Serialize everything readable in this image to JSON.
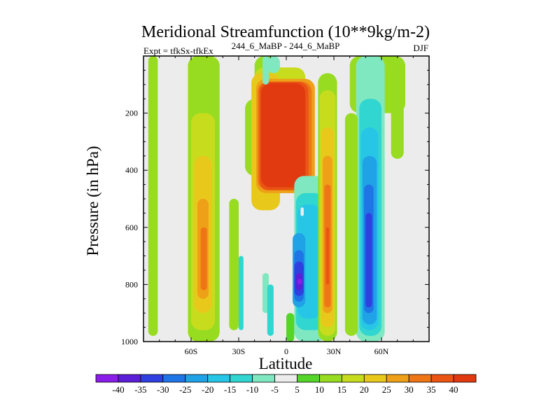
{
  "chart_data": {
    "type": "heatmap",
    "title": "Meridional Streamfunction (10**9kg/m-2)",
    "subtitle_left": "Expt = tfkSx-tfkEx",
    "subtitle_center": "244_6_MaBP - 244_6_MaBP",
    "subtitle_right": "DJF",
    "xlabel": "Latitude",
    "ylabel": "Pressure (in hPa)",
    "xlim": [
      -90,
      90
    ],
    "ylim": [
      1000,
      0
    ],
    "x_ticks": [
      {
        "value": -60,
        "label": "60S"
      },
      {
        "value": -30,
        "label": "30S"
      },
      {
        "value": 0,
        "label": "0"
      },
      {
        "value": 30,
        "label": "30N"
      },
      {
        "value": 60,
        "label": "60N"
      }
    ],
    "y_ticks": [
      {
        "value": 200,
        "label": "200"
      },
      {
        "value": 400,
        "label": "400"
      },
      {
        "value": 600,
        "label": "600"
      },
      {
        "value": 800,
        "label": "800"
      },
      {
        "value": 1000,
        "label": "1000"
      }
    ],
    "colorbar": {
      "labels": [
        "-40",
        "-35",
        "-30",
        "-25",
        "-20",
        "-15",
        "-10",
        "-5",
        "5",
        "10",
        "15",
        "20",
        "25",
        "30",
        "35",
        "40"
      ],
      "colors": [
        "#8a1ee8",
        "#5a1fd6",
        "#2f3fe0",
        "#1f74e6",
        "#20a2e6",
        "#27c6e6",
        "#31d6d0",
        "#7fe8c0",
        "#ececec",
        "#55d42a",
        "#98dc22",
        "#c8dc1e",
        "#e8c81a",
        "#eea018",
        "#ee7616",
        "#ea5514",
        "#e23a10"
      ]
    },
    "background_color": "#ececec",
    "cells": [
      {
        "level": 10,
        "lat": [
          -62,
          -42
        ],
        "p": [
          0,
          1000
        ]
      },
      {
        "level": 11,
        "lat": [
          -60,
          -45
        ],
        "p": [
          200,
          960
        ]
      },
      {
        "level": 12,
        "lat": [
          -58,
          -47
        ],
        "p": [
          350,
          900
        ]
      },
      {
        "level": 13,
        "lat": [
          -56,
          -49
        ],
        "p": [
          500,
          850
        ]
      },
      {
        "level": 14,
        "lat": [
          -54,
          -50
        ],
        "p": [
          600,
          820
        ]
      },
      {
        "level": 10,
        "lat": [
          -87,
          -81
        ],
        "p": [
          0,
          980
        ]
      },
      {
        "level": 10,
        "lat": [
          -36,
          -30
        ],
        "p": [
          500,
          960
        ]
      },
      {
        "level": 6,
        "lat": [
          -30,
          -27
        ],
        "p": [
          700,
          960
        ]
      },
      {
        "level": 7,
        "lat": [
          -15,
          -11
        ],
        "p": [
          760,
          900
        ]
      },
      {
        "level": 6,
        "lat": [
          -12,
          -8
        ],
        "p": [
          800,
          980
        ]
      },
      {
        "level": 10,
        "lat": [
          -20,
          -5
        ],
        "p": [
          0,
          120
        ]
      },
      {
        "level": 11,
        "lat": [
          -20,
          12
        ],
        "p": [
          40,
          250
        ]
      },
      {
        "level": 10,
        "lat": [
          -26,
          -8
        ],
        "p": [
          150,
          420
        ]
      },
      {
        "level": 12,
        "lat": [
          -22,
          -4
        ],
        "p": [
          60,
          540
        ]
      },
      {
        "level": 13,
        "lat": [
          -19,
          18
        ],
        "p": [
          80,
          480
        ]
      },
      {
        "level": 14,
        "lat": [
          -18,
          16
        ],
        "p": [
          90,
          470
        ]
      },
      {
        "level": 15,
        "lat": [
          -17,
          14
        ],
        "p": [
          90,
          470
        ]
      },
      {
        "level": 16,
        "lat": [
          -16,
          12
        ],
        "p": [
          95,
          460
        ]
      },
      {
        "level": 7,
        "lat": [
          -12,
          -4
        ],
        "p": [
          0,
          60
        ]
      },
      {
        "level": 7,
        "lat": [
          5,
          25
        ],
        "p": [
          420,
          1000
        ]
      },
      {
        "level": 6,
        "lat": [
          6,
          24
        ],
        "p": [
          480,
          960
        ]
      },
      {
        "level": 5,
        "lat": [
          7,
          22
        ],
        "p": [
          520,
          920
        ]
      },
      {
        "level": 4,
        "lat": [
          4,
          12
        ],
        "p": [
          620,
          880
        ]
      },
      {
        "level": 3,
        "lat": [
          5,
          11
        ],
        "p": [
          680,
          860
        ]
      },
      {
        "level": 2,
        "lat": [
          5,
          11
        ],
        "p": [
          720,
          840
        ]
      },
      {
        "level": 1,
        "lat": [
          6,
          10
        ],
        "p": [
          760,
          820
        ]
      },
      {
        "level": 0,
        "lat": [
          7,
          10
        ],
        "p": [
          780,
          800
        ]
      },
      {
        "level": 8,
        "lat": [
          9,
          11
        ],
        "p": [
          530,
          560
        ]
      },
      {
        "level": 9,
        "lat": [
          0,
          5
        ],
        "p": [
          900,
          1000
        ]
      },
      {
        "level": 10,
        "lat": [
          20,
          32
        ],
        "p": [
          60,
          1000
        ]
      },
      {
        "level": 11,
        "lat": [
          21,
          31
        ],
        "p": [
          120,
          980
        ]
      },
      {
        "level": 12,
        "lat": [
          22,
          30
        ],
        "p": [
          250,
          950
        ]
      },
      {
        "level": 13,
        "lat": [
          23,
          29
        ],
        "p": [
          350,
          900
        ]
      },
      {
        "level": 14,
        "lat": [
          24,
          28
        ],
        "p": [
          450,
          880
        ]
      },
      {
        "level": 15,
        "lat": [
          25,
          27
        ],
        "p": [
          600,
          800
        ]
      },
      {
        "level": 10,
        "lat": [
          40,
          75
        ],
        "p": [
          0,
          200
        ]
      },
      {
        "level": 7,
        "lat": [
          44,
          62
        ],
        "p": [
          0,
          1000
        ]
      },
      {
        "level": 6,
        "lat": [
          46,
          60
        ],
        "p": [
          150,
          980
        ]
      },
      {
        "level": 5,
        "lat": [
          47,
          58
        ],
        "p": [
          250,
          960
        ]
      },
      {
        "level": 4,
        "lat": [
          48,
          57
        ],
        "p": [
          350,
          940
        ]
      },
      {
        "level": 3,
        "lat": [
          49,
          55
        ],
        "p": [
          450,
          900
        ]
      },
      {
        "level": 2,
        "lat": [
          50,
          54
        ],
        "p": [
          550,
          880
        ]
      },
      {
        "level": 10,
        "lat": [
          37,
          45
        ],
        "p": [
          200,
          980
        ]
      },
      {
        "level": 10,
        "lat": [
          66,
          74
        ],
        "p": [
          80,
          360
        ]
      },
      {
        "level": 7,
        "lat": [
          -15,
          -11
        ],
        "p": [
          0,
          100
        ]
      }
    ]
  }
}
